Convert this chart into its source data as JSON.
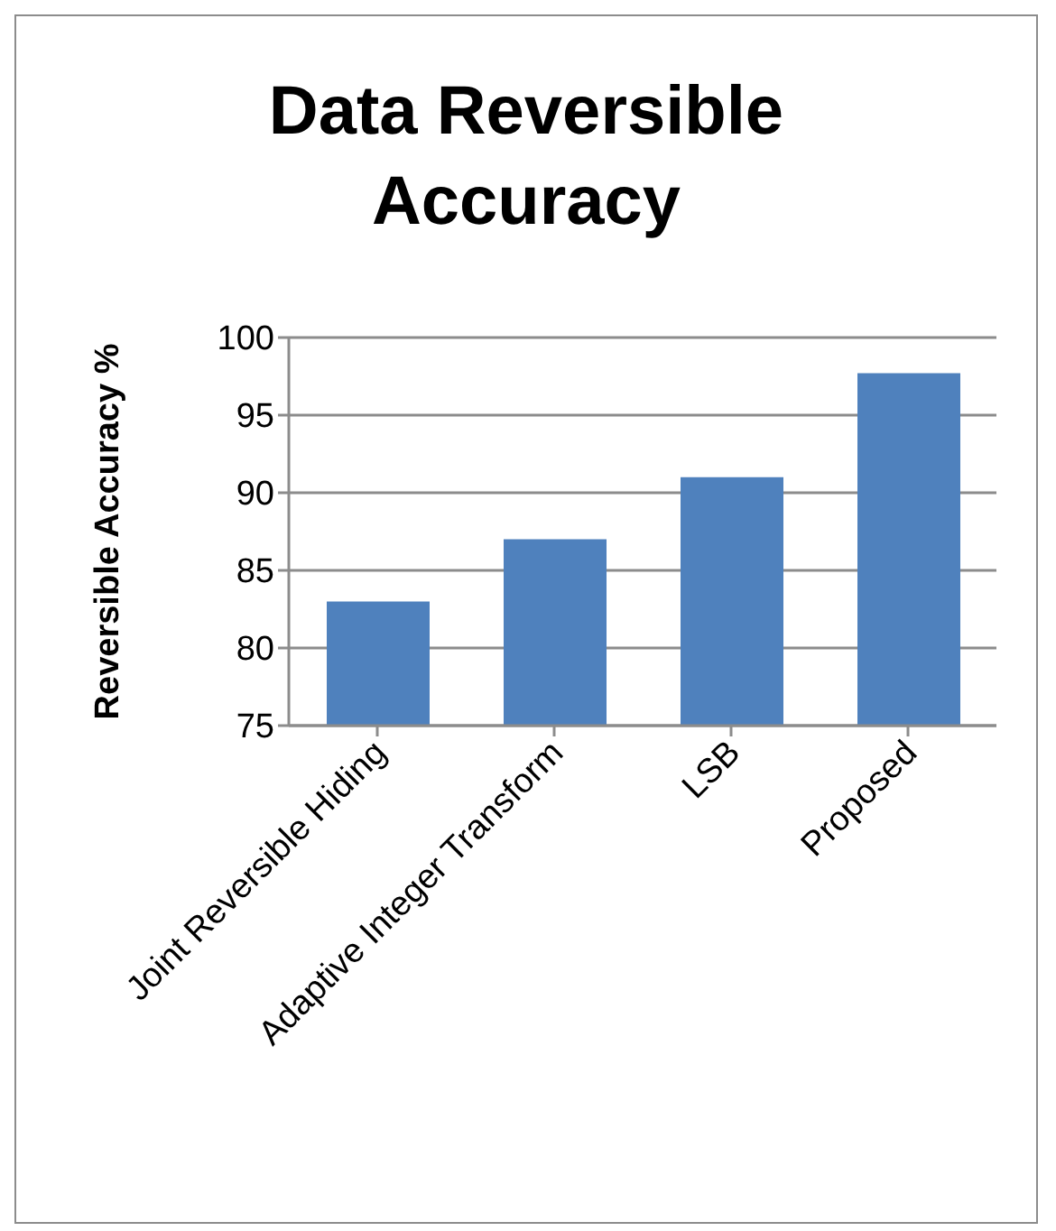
{
  "chart_data": {
    "type": "bar",
    "title": "Data Reversible Accuracy",
    "ylabel": "Reversible Accuracy %",
    "categories": [
      "Joint Reversible Hiding",
      "Adaptive Integer Transform",
      "LSB",
      "Proposed"
    ],
    "values": [
      83,
      87,
      91,
      97.7
    ],
    "color": "#4f81bd",
    "ylim": [
      75,
      100
    ],
    "yticks": [
      75,
      80,
      85,
      90,
      95,
      100
    ],
    "grid": "y"
  }
}
